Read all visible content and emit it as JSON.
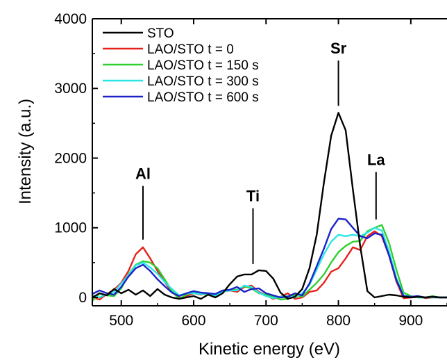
{
  "chart_data": {
    "type": "line",
    "xlabel": "Kinetic energy (eV)",
    "ylabel": "Intensity (a.u.)",
    "xlim": [
      460,
      950
    ],
    "ylim": [
      -120,
      4000
    ],
    "xticks": [
      500,
      600,
      700,
      800,
      900
    ],
    "yticks": [
      0,
      1000,
      2000,
      3000,
      4000
    ],
    "grid": false,
    "legend_position": "top-left",
    "annotations": [
      {
        "text": "Al",
        "x": 530,
        "line_top": 1600,
        "line_bottom": 830
      },
      {
        "text": "Ti",
        "x": 682,
        "line_top": 1280,
        "line_bottom": 480
      },
      {
        "text": "Sr",
        "x": 800,
        "line_top": 3400,
        "line_bottom": 2750
      },
      {
        "text": "La",
        "x": 852,
        "line_top": 1800,
        "line_bottom": 1120
      }
    ],
    "series": [
      {
        "name": "STO",
        "color": "#000000",
        "x": [
          460,
          470,
          480,
          490,
          500,
          510,
          520,
          530,
          540,
          550,
          560,
          570,
          580,
          590,
          600,
          610,
          620,
          630,
          640,
          650,
          660,
          670,
          680,
          690,
          700,
          710,
          720,
          730,
          740,
          750,
          760,
          770,
          780,
          790,
          800,
          810,
          820,
          830,
          840,
          850,
          860,
          870,
          880,
          890,
          900,
          910,
          920,
          930,
          940,
          950
        ],
        "y": [
          0,
          60,
          30,
          120,
          60,
          110,
          40,
          100,
          20,
          120,
          40,
          0,
          -20,
          0,
          20,
          -20,
          40,
          0,
          60,
          190,
          300,
          330,
          330,
          390,
          380,
          270,
          70,
          -20,
          10,
          120,
          420,
          900,
          1650,
          2320,
          2650,
          2400,
          1550,
          740,
          90,
          0,
          20,
          40,
          30,
          10,
          0,
          10,
          0,
          10,
          0,
          0
        ]
      },
      {
        "name": "LAO/STO t = 0",
        "color": "#e8211c",
        "x": [
          460,
          470,
          480,
          490,
          500,
          510,
          520,
          530,
          540,
          550,
          560,
          570,
          580,
          590,
          600,
          610,
          620,
          630,
          640,
          650,
          660,
          670,
          680,
          690,
          700,
          710,
          720,
          730,
          740,
          750,
          760,
          770,
          780,
          790,
          800,
          810,
          820,
          830,
          840,
          850,
          860,
          870,
          880,
          890,
          900,
          910,
          920,
          930,
          940,
          950
        ],
        "y": [
          0,
          -30,
          50,
          110,
          210,
          380,
          620,
          720,
          560,
          380,
          220,
          80,
          -10,
          20,
          60,
          40,
          60,
          20,
          80,
          100,
          80,
          150,
          170,
          80,
          30,
          -20,
          10,
          60,
          -20,
          0,
          80,
          100,
          210,
          370,
          420,
          560,
          720,
          680,
          880,
          950,
          880,
          600,
          230,
          -10,
          0,
          10,
          -10,
          0,
          0,
          0
        ]
      },
      {
        "name": "LAO/STO t = 150 s",
        "color": "#2fd02f",
        "x": [
          460,
          470,
          480,
          490,
          500,
          510,
          520,
          530,
          540,
          550,
          560,
          570,
          580,
          590,
          600,
          610,
          620,
          630,
          640,
          650,
          660,
          670,
          680,
          690,
          700,
          710,
          720,
          730,
          740,
          750,
          760,
          770,
          780,
          790,
          800,
          810,
          820,
          830,
          840,
          850,
          860,
          870,
          880,
          890,
          900,
          910,
          920,
          930,
          940,
          950
        ],
        "y": [
          -50,
          60,
          30,
          20,
          130,
          330,
          470,
          520,
          500,
          420,
          260,
          90,
          -20,
          40,
          80,
          50,
          40,
          10,
          90,
          110,
          110,
          160,
          130,
          60,
          40,
          10,
          -30,
          -20,
          40,
          10,
          110,
          210,
          330,
          500,
          650,
          740,
          800,
          810,
          950,
          1000,
          1040,
          780,
          400,
          70,
          20,
          0,
          0,
          20,
          0,
          0
        ]
      },
      {
        "name": "LAO/STO t = 300 s",
        "color": "#29e6e6",
        "x": [
          460,
          470,
          480,
          490,
          500,
          510,
          520,
          530,
          540,
          550,
          560,
          570,
          580,
          590,
          600,
          610,
          620,
          630,
          640,
          650,
          660,
          670,
          680,
          690,
          700,
          710,
          720,
          730,
          740,
          750,
          760,
          770,
          780,
          790,
          800,
          810,
          820,
          830,
          840,
          850,
          860,
          870,
          880,
          890,
          900,
          910,
          920,
          930,
          940,
          950
        ],
        "y": [
          30,
          0,
          50,
          80,
          200,
          320,
          460,
          500,
          430,
          340,
          220,
          120,
          30,
          60,
          60,
          50,
          60,
          30,
          80,
          100,
          100,
          170,
          150,
          70,
          20,
          -10,
          10,
          20,
          0,
          60,
          180,
          400,
          620,
          800,
          900,
          880,
          900,
          880,
          930,
          1000,
          960,
          660,
          280,
          30,
          10,
          0,
          0,
          0,
          0,
          0
        ]
      },
      {
        "name": "LAO/STO t = 600 s",
        "color": "#1a22c8",
        "x": [
          460,
          470,
          480,
          490,
          500,
          510,
          520,
          530,
          540,
          550,
          560,
          570,
          580,
          590,
          600,
          610,
          620,
          630,
          640,
          650,
          660,
          670,
          680,
          690,
          700,
          710,
          720,
          730,
          740,
          750,
          760,
          770,
          780,
          790,
          800,
          810,
          820,
          830,
          840,
          850,
          860,
          870,
          880,
          890,
          900,
          910,
          920,
          930,
          940,
          950
        ],
        "y": [
          50,
          100,
          60,
          40,
          150,
          300,
          420,
          470,
          380,
          260,
          160,
          70,
          20,
          60,
          90,
          70,
          60,
          50,
          100,
          110,
          150,
          80,
          120,
          130,
          60,
          30,
          0,
          10,
          60,
          30,
          200,
          450,
          700,
          980,
          1130,
          1120,
          1000,
          880,
          850,
          920,
          900,
          600,
          250,
          20,
          10,
          20,
          0,
          10,
          0,
          0
        ]
      }
    ]
  }
}
